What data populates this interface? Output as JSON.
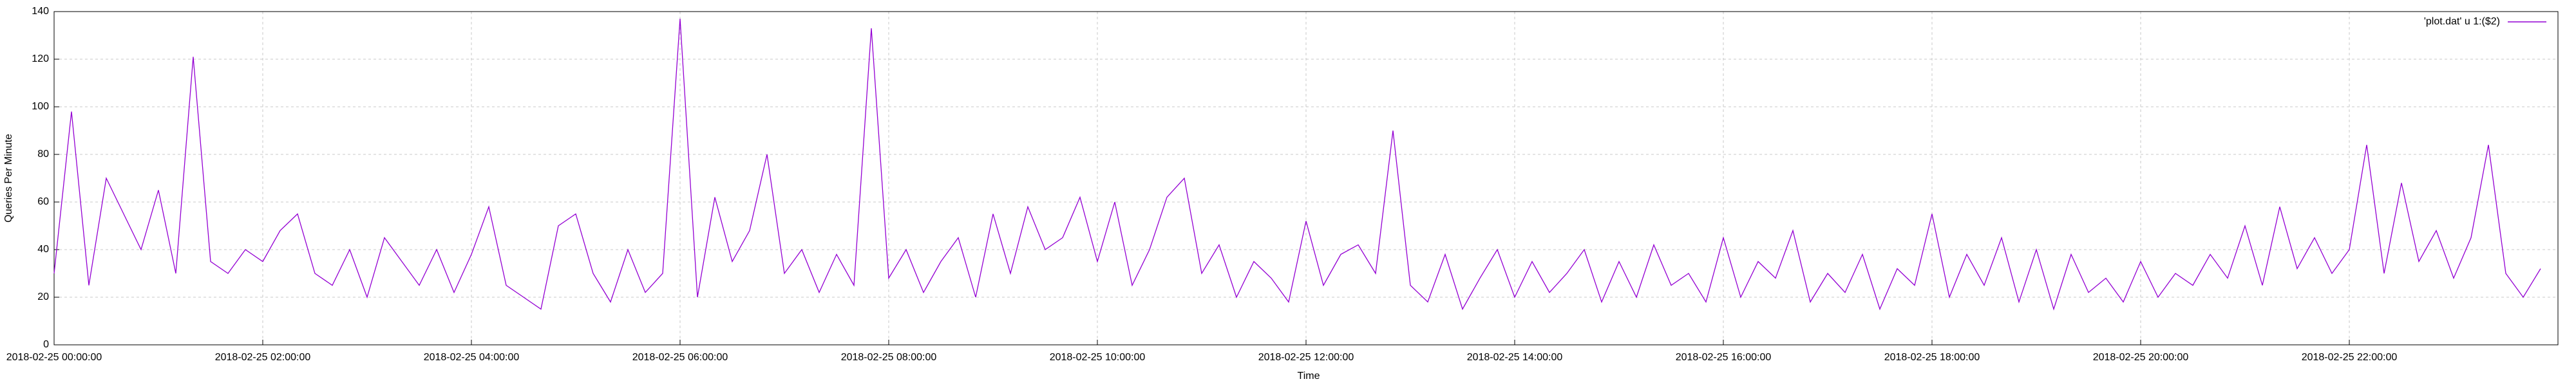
{
  "chart_data": {
    "type": "line",
    "ylabel": "Queries Per Minute",
    "xlabel": "Time",
    "xlim": [
      "2018-02-25 00:00:00",
      "2018-02-26 00:00:00"
    ],
    "xticks": [
      "2018-02-25 00:00:00",
      "2018-02-25 02:00:00",
      "2018-02-25 04:00:00",
      "2018-02-25 06:00:00",
      "2018-02-25 08:00:00",
      "2018-02-25 10:00:00",
      "2018-02-25 12:00:00",
      "2018-02-25 14:00:00",
      "2018-02-25 16:00:00",
      "2018-02-25 18:00:00",
      "2018-02-25 20:00:00",
      "2018-02-25 22:00:00"
    ],
    "ylim": [
      0,
      140
    ],
    "yticks": [
      0,
      20,
      40,
      60,
      80,
      100,
      120,
      140
    ],
    "grid": true,
    "legend": "top-right",
    "x": [
      "2018-02-25 00:00:00",
      "2018-02-25 00:10:00",
      "2018-02-25 00:20:00",
      "2018-02-25 00:30:00",
      "2018-02-25 00:40:00",
      "2018-02-25 00:50:00",
      "2018-02-25 01:00:00",
      "2018-02-25 01:10:00",
      "2018-02-25 01:20:00",
      "2018-02-25 01:30:00",
      "2018-02-25 01:40:00",
      "2018-02-25 01:50:00",
      "2018-02-25 02:00:00",
      "2018-02-25 02:10:00",
      "2018-02-25 02:20:00",
      "2018-02-25 02:30:00",
      "2018-02-25 02:40:00",
      "2018-02-25 02:50:00",
      "2018-02-25 03:00:00",
      "2018-02-25 03:10:00",
      "2018-02-25 03:20:00",
      "2018-02-25 03:30:00",
      "2018-02-25 03:40:00",
      "2018-02-25 03:50:00",
      "2018-02-25 04:00:00",
      "2018-02-25 04:10:00",
      "2018-02-25 04:20:00",
      "2018-02-25 04:30:00",
      "2018-02-25 04:40:00",
      "2018-02-25 04:50:00",
      "2018-02-25 05:00:00",
      "2018-02-25 05:10:00",
      "2018-02-25 05:20:00",
      "2018-02-25 05:30:00",
      "2018-02-25 05:40:00",
      "2018-02-25 05:50:00",
      "2018-02-25 06:00:00",
      "2018-02-25 06:10:00",
      "2018-02-25 06:20:00",
      "2018-02-25 06:30:00",
      "2018-02-25 06:40:00",
      "2018-02-25 06:50:00",
      "2018-02-25 07:00:00",
      "2018-02-25 07:10:00",
      "2018-02-25 07:20:00",
      "2018-02-25 07:30:00",
      "2018-02-25 07:40:00",
      "2018-02-25 07:50:00",
      "2018-02-25 08:00:00",
      "2018-02-25 08:10:00",
      "2018-02-25 08:20:00",
      "2018-02-25 08:30:00",
      "2018-02-25 08:40:00",
      "2018-02-25 08:50:00",
      "2018-02-25 09:00:00",
      "2018-02-25 09:10:00",
      "2018-02-25 09:20:00",
      "2018-02-25 09:30:00",
      "2018-02-25 09:40:00",
      "2018-02-25 09:50:00",
      "2018-02-25 10:00:00",
      "2018-02-25 10:10:00",
      "2018-02-25 10:20:00",
      "2018-02-25 10:30:00",
      "2018-02-25 10:40:00",
      "2018-02-25 10:50:00",
      "2018-02-25 11:00:00",
      "2018-02-25 11:10:00",
      "2018-02-25 11:20:00",
      "2018-02-25 11:30:00",
      "2018-02-25 11:40:00",
      "2018-02-25 11:50:00",
      "2018-02-25 12:00:00",
      "2018-02-25 12:10:00",
      "2018-02-25 12:20:00",
      "2018-02-25 12:30:00",
      "2018-02-25 12:40:00",
      "2018-02-25 12:50:00",
      "2018-02-25 13:00:00",
      "2018-02-25 13:10:00",
      "2018-02-25 13:20:00",
      "2018-02-25 13:30:00",
      "2018-02-25 13:40:00",
      "2018-02-25 13:50:00",
      "2018-02-25 14:00:00",
      "2018-02-25 14:10:00",
      "2018-02-25 14:20:00",
      "2018-02-25 14:30:00",
      "2018-02-25 14:40:00",
      "2018-02-25 14:50:00",
      "2018-02-25 15:00:00",
      "2018-02-25 15:10:00",
      "2018-02-25 15:20:00",
      "2018-02-25 15:30:00",
      "2018-02-25 15:40:00",
      "2018-02-25 15:50:00",
      "2018-02-25 16:00:00",
      "2018-02-25 16:10:00",
      "2018-02-25 16:20:00",
      "2018-02-25 16:30:00",
      "2018-02-25 16:40:00",
      "2018-02-25 16:50:00",
      "2018-02-25 17:00:00",
      "2018-02-25 17:10:00",
      "2018-02-25 17:20:00",
      "2018-02-25 17:30:00",
      "2018-02-25 17:40:00",
      "2018-02-25 17:50:00",
      "2018-02-25 18:00:00",
      "2018-02-25 18:10:00",
      "2018-02-25 18:20:00",
      "2018-02-25 18:30:00",
      "2018-02-25 18:40:00",
      "2018-02-25 18:50:00",
      "2018-02-25 19:00:00",
      "2018-02-25 19:10:00",
      "2018-02-25 19:20:00",
      "2018-02-25 19:30:00",
      "2018-02-25 19:40:00",
      "2018-02-25 19:50:00",
      "2018-02-25 20:00:00",
      "2018-02-25 20:10:00",
      "2018-02-25 20:20:00",
      "2018-02-25 20:30:00",
      "2018-02-25 20:40:00",
      "2018-02-25 20:50:00",
      "2018-02-25 21:00:00",
      "2018-02-25 21:10:00",
      "2018-02-25 21:20:00",
      "2018-02-25 21:30:00",
      "2018-02-25 21:40:00",
      "2018-02-25 21:50:00",
      "2018-02-25 22:00:00",
      "2018-02-25 22:10:00",
      "2018-02-25 22:20:00",
      "2018-02-25 22:30:00",
      "2018-02-25 22:40:00",
      "2018-02-25 22:50:00",
      "2018-02-25 23:00:00",
      "2018-02-25 23:10:00",
      "2018-02-25 23:20:00",
      "2018-02-25 23:30:00",
      "2018-02-25 23:40:00",
      "2018-02-25 23:50:00"
    ],
    "series": [
      {
        "name": "'plot.dat' u 1:($2)",
        "color": "#9400d3",
        "values": [
          30,
          98,
          25,
          70,
          55,
          40,
          65,
          30,
          121,
          35,
          30,
          40,
          35,
          48,
          55,
          30,
          25,
          40,
          20,
          45,
          35,
          25,
          40,
          22,
          38,
          58,
          25,
          20,
          15,
          50,
          55,
          30,
          18,
          40,
          22,
          30,
          137,
          20,
          62,
          35,
          48,
          80,
          30,
          40,
          22,
          38,
          25,
          133,
          28,
          40,
          22,
          35,
          45,
          20,
          55,
          30,
          58,
          40,
          45,
          62,
          35,
          60,
          25,
          40,
          62,
          70,
          30,
          42,
          20,
          35,
          28,
          18,
          52,
          25,
          38,
          42,
          30,
          90,
          25,
          18,
          38,
          15,
          28,
          40,
          20,
          35,
          22,
          30,
          40,
          18,
          35,
          20,
          42,
          25,
          30,
          18,
          45,
          20,
          35,
          28,
          48,
          18,
          30,
          22,
          38,
          15,
          32,
          25,
          55,
          20,
          38,
          25,
          45,
          18,
          40,
          15,
          38,
          22,
          28,
          18,
          35,
          20,
          30,
          25,
          38,
          28,
          50,
          25,
          58,
          32,
          45,
          30,
          40,
          84,
          30,
          68,
          35,
          48,
          28,
          45,
          84,
          30,
          20,
          32
        ]
      }
    ]
  }
}
